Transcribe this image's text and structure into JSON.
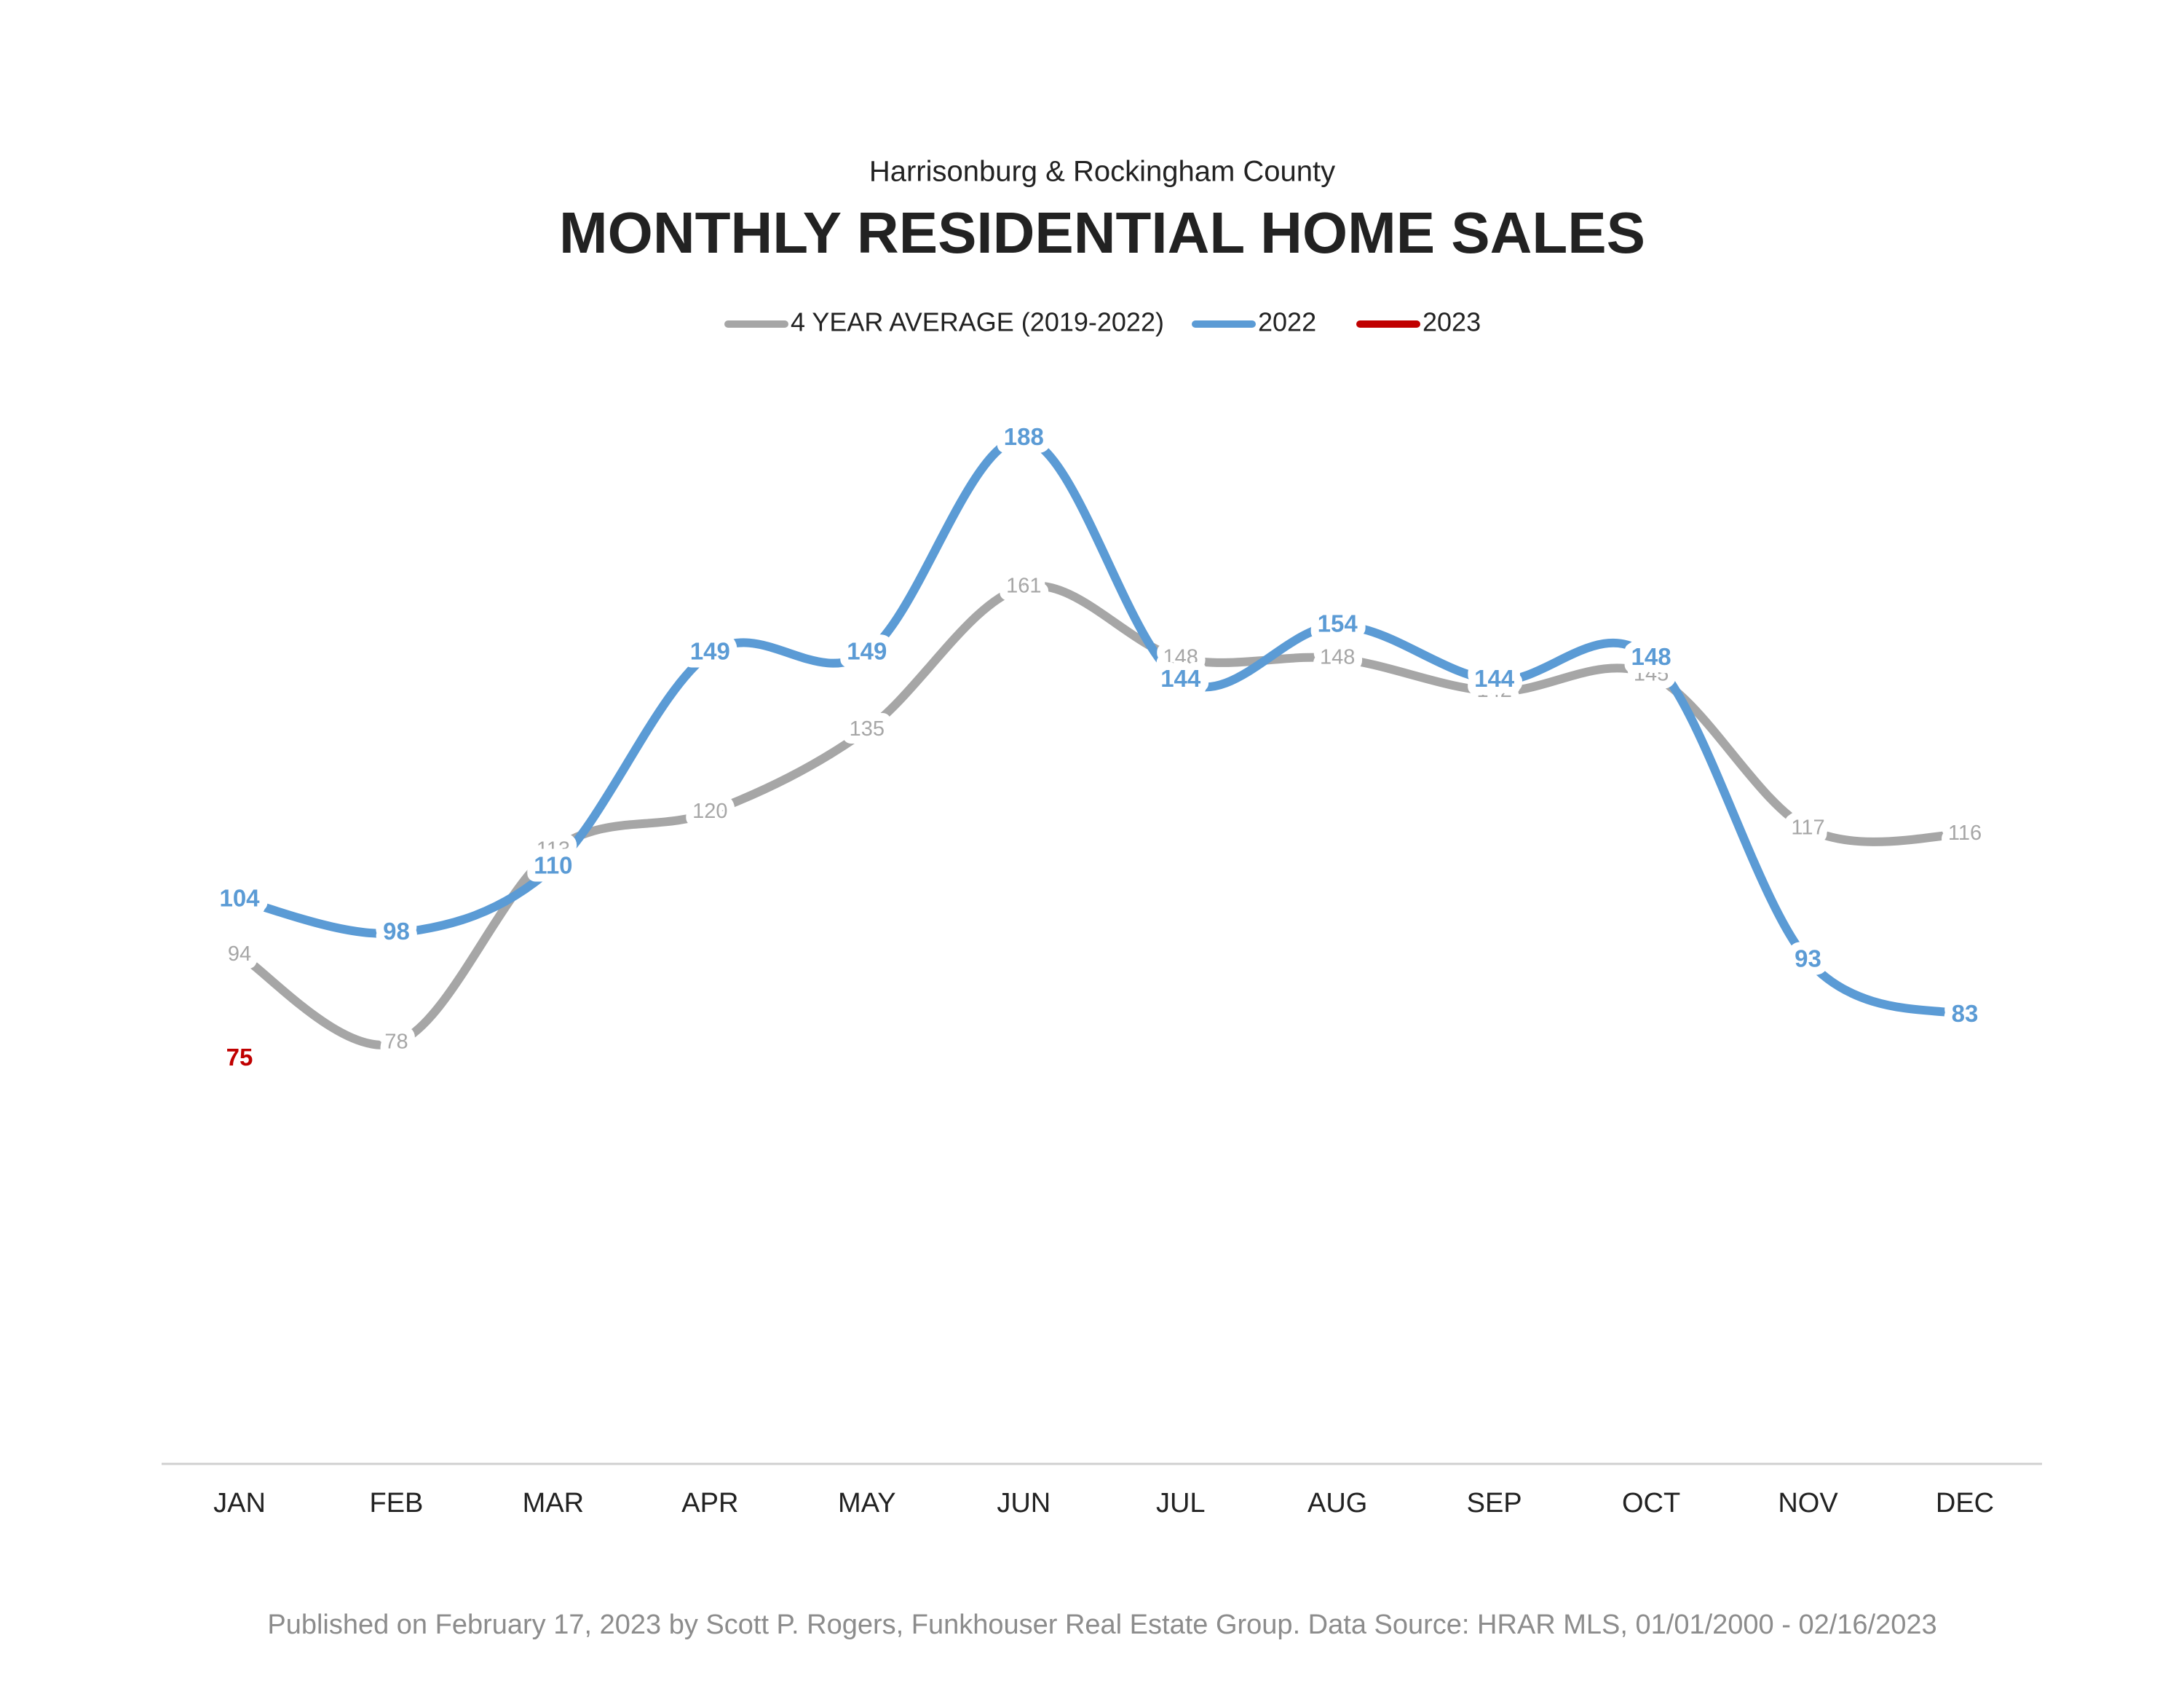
{
  "chart_data": {
    "type": "line",
    "subtitle": "Harrisonburg & Rockingham County",
    "title": "MONTHLY RESIDENTIAL HOME SALES",
    "categories": [
      "JAN",
      "FEB",
      "MAR",
      "APR",
      "MAY",
      "JUN",
      "JUL",
      "AUG",
      "SEP",
      "OCT",
      "NOV",
      "DEC"
    ],
    "series": [
      {
        "name": "4 YEAR AVERAGE (2019-2022)",
        "color": "#a6a6a6",
        "values": [
          94,
          78,
          113,
          120,
          135,
          161,
          148,
          148,
          142,
          145,
          117,
          116
        ]
      },
      {
        "name": "2022",
        "color": "#5b9bd5",
        "values": [
          104,
          98,
          110,
          149,
          149,
          188,
          144,
          154,
          144,
          148,
          93,
          83
        ]
      },
      {
        "name": "2023",
        "color": "#c00000",
        "values": [
          75,
          null,
          null,
          null,
          null,
          null,
          null,
          null,
          null,
          null,
          null,
          null
        ]
      }
    ],
    "ylim": [
      0,
      200
    ],
    "grid": false,
    "legend": "top",
    "footnote": "Published on February 17, 2023 by Scott P. Rogers, Funkhouser Real Estate Group. Data Source: HRAR MLS, 01/01/2000 - 02/16/2023"
  }
}
